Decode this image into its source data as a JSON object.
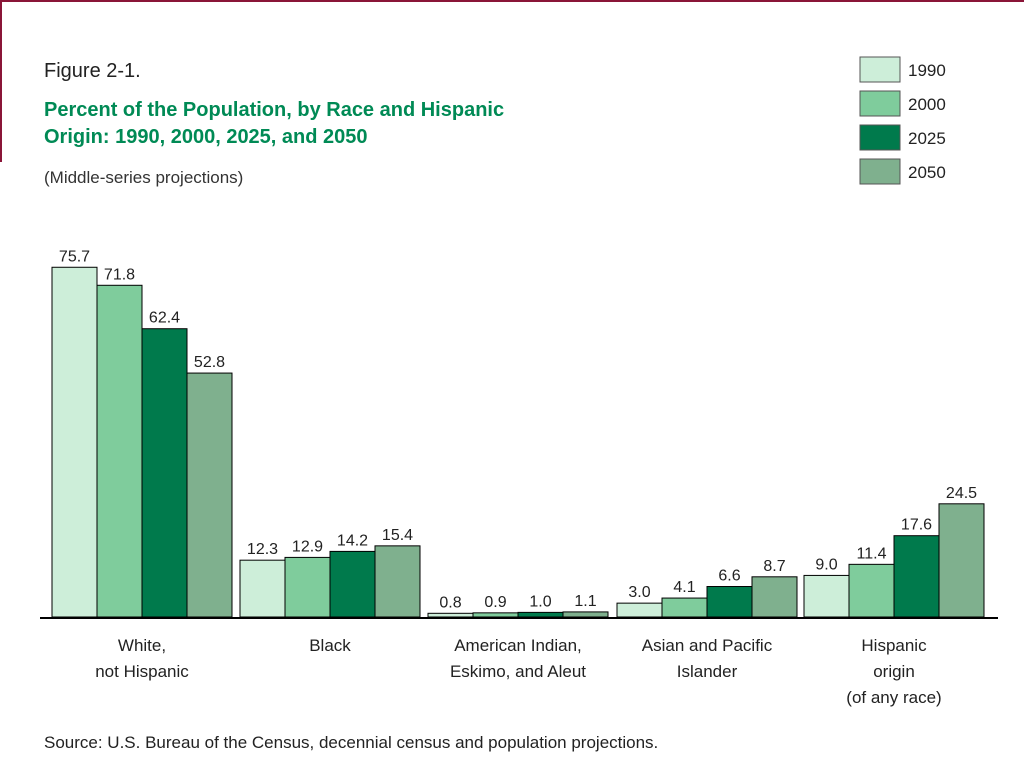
{
  "header": {
    "figure_label": "Figure 2-1.",
    "subtitle": "(Middle-series projections)",
    "source": "Source:  U.S. Bureau of the Census, decennial census and population projections."
  },
  "colors": {
    "frame": "#8a1538",
    "title": "#008a55",
    "axis": "#000000"
  },
  "chart_data": {
    "type": "bar",
    "title_lines": [
      "Percent of the Population, by Race and Hispanic",
      "Origin:  1990, 2000, 2025, and 2050"
    ],
    "categories": [
      [
        "White,",
        "not Hispanic"
      ],
      [
        "Black"
      ],
      [
        "American Indian,",
        "Eskimo, and Aleut"
      ],
      [
        "Asian and Pacific",
        "Islander"
      ],
      [
        "Hispanic",
        "origin",
        "(of any race)"
      ]
    ],
    "series": [
      {
        "name": "1990",
        "color": "#cdeed9",
        "values": [
          75.7,
          12.3,
          0.8,
          3.0,
          9.0
        ]
      },
      {
        "name": "2000",
        "color": "#7fcc9c",
        "values": [
          71.8,
          12.9,
          0.9,
          4.1,
          11.4
        ]
      },
      {
        "name": "2025",
        "color": "#007a4c",
        "values": [
          62.4,
          14.2,
          1.0,
          6.6,
          17.6
        ]
      },
      {
        "name": "2050",
        "color": "#7fb08e",
        "values": [
          52.8,
          15.4,
          1.1,
          8.7,
          24.5
        ]
      }
    ],
    "value_labels": [
      [
        "75.7",
        "12.3",
        "0.8",
        "3.0",
        "9.0"
      ],
      [
        "71.8",
        "12.9",
        "0.9",
        "4.1",
        "11.4"
      ],
      [
        "62.4",
        "14.2",
        "1.0",
        "6.6",
        "17.6"
      ],
      [
        "52.8",
        "15.4",
        "1.1",
        "8.7",
        "24.5"
      ]
    ],
    "ylim": [
      0,
      80
    ],
    "y_axis_shown": false,
    "grid": false,
    "legend_position": "top-right"
  }
}
